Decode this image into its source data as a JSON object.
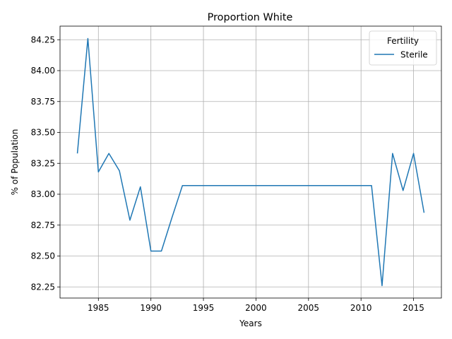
{
  "chart_data": {
    "type": "line",
    "title": "Proportion White",
    "xlabel": "Years",
    "ylabel": "% of Population",
    "xlim": [
      1981.35,
      2017.65
    ],
    "ylim": [
      82.16,
      84.36
    ],
    "x_ticks": [
      1985,
      1990,
      1995,
      2000,
      2005,
      2010,
      2015
    ],
    "x_tick_labels": [
      "1985",
      "1990",
      "1995",
      "2000",
      "2005",
      "2010",
      "2015"
    ],
    "y_ticks": [
      82.25,
      82.5,
      82.75,
      83.0,
      83.25,
      83.5,
      83.75,
      84.0,
      84.25
    ],
    "y_tick_labels": [
      "82.25",
      "82.50",
      "82.75",
      "83.00",
      "83.25",
      "83.50",
      "83.75",
      "84.00",
      "84.25"
    ],
    "grid": true,
    "legend": {
      "title": "Fertility",
      "position": "top-right"
    },
    "series": [
      {
        "name": "Sterile",
        "color": "#1f77b4",
        "x": [
          1983,
          1984,
          1985,
          1986,
          1987,
          1988,
          1989,
          1990,
          1991,
          1992,
          1993,
          1994,
          1995,
          1996,
          1997,
          1998,
          1999,
          2000,
          2001,
          2002,
          2003,
          2004,
          2005,
          2006,
          2007,
          2008,
          2009,
          2010,
          2011,
          2012,
          2013,
          2014,
          2015,
          2016
        ],
        "y": [
          83.33,
          84.26,
          83.18,
          83.33,
          83.19,
          82.79,
          83.06,
          82.54,
          82.54,
          82.81,
          83.07,
          83.07,
          83.07,
          83.07,
          83.07,
          83.07,
          83.07,
          83.07,
          83.07,
          83.07,
          83.07,
          83.07,
          83.07,
          83.07,
          83.07,
          83.07,
          83.07,
          83.07,
          83.07,
          82.26,
          83.33,
          83.03,
          83.33,
          82.85
        ]
      }
    ]
  }
}
